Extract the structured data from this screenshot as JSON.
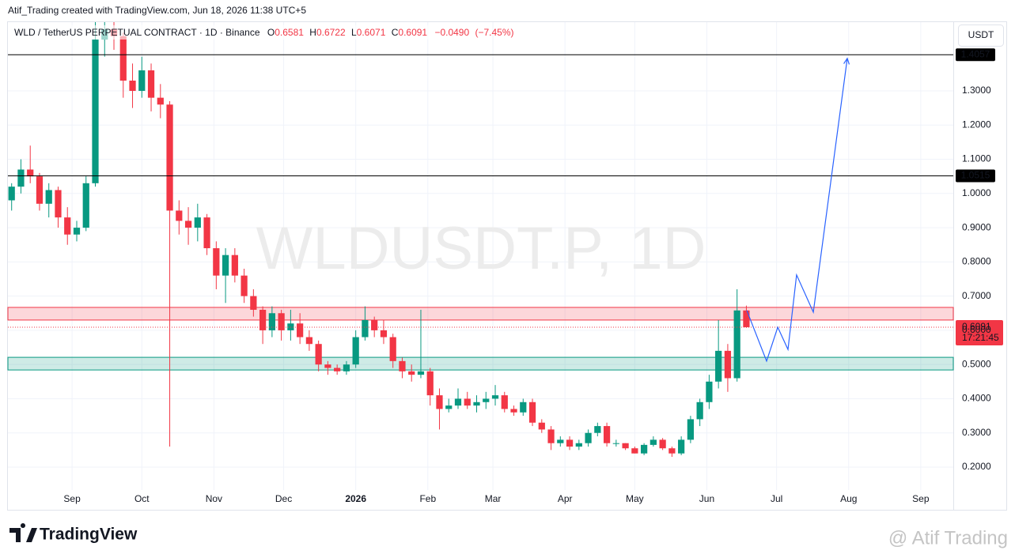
{
  "header": "Atif_Trading created with TradingView.com, Jun 18, 2026 11:38 UTC+5",
  "chart_data": {
    "type": "candlestick",
    "title": "WLD / TetherUS PERPETUAL CONTRACT · 1D · Binance",
    "ohlc_legend": {
      "o_label": "O",
      "open": 0.6581,
      "h_label": "H",
      "high": 0.6722,
      "l_label": "L",
      "low": 0.6071,
      "c_label": "C",
      "close": 0.6091,
      "change": {
        "value": -0.049,
        "label": "−0.0490"
      },
      "change_pct": {
        "value": -7.45,
        "label": "(−7.45%)"
      }
    },
    "watermark": "WLDUSDT.P, 1D",
    "currency": "USDT",
    "up_color": "#089981",
    "down_color": "#f23645",
    "x": [
      5,
      9,
      13,
      17,
      21,
      25,
      29,
      33,
      37,
      41,
      45,
      49,
      53,
      57,
      61,
      65,
      69,
      73,
      77,
      81,
      85,
      89,
      93,
      97,
      101,
      105,
      109,
      113,
      117,
      121,
      125,
      129,
      133,
      137,
      141,
      145,
      149,
      153,
      157,
      161,
      165,
      169,
      173,
      177,
      181,
      185,
      189,
      193,
      197,
      201,
      205,
      209,
      213,
      217,
      221,
      225,
      229,
      233,
      237,
      241,
      245,
      249,
      253,
      257,
      261,
      265,
      269,
      273,
      277,
      281,
      285,
      289,
      293,
      297,
      301,
      305,
      309,
      313,
      317,
      321
    ],
    "open": [
      0.98,
      1.02,
      1.07,
      1.05,
      0.97,
      1.01,
      0.93,
      0.88,
      0.9,
      1.03,
      1.45,
      1.48,
      1.46,
      1.33,
      1.3,
      1.36,
      1.28,
      1.26,
      0.95,
      0.92,
      0.9,
      0.93,
      0.84,
      0.76,
      0.82,
      0.76,
      0.7,
      0.66,
      0.6,
      0.65,
      0.6,
      0.62,
      0.58,
      0.56,
      0.5,
      0.49,
      0.48,
      0.5,
      0.58,
      0.63,
      0.6,
      0.58,
      0.51,
      0.48,
      0.47,
      0.48,
      0.41,
      0.37,
      0.38,
      0.4,
      0.38,
      0.39,
      0.4,
      0.41,
      0.37,
      0.36,
      0.39,
      0.33,
      0.31,
      0.27,
      0.28,
      0.26,
      0.27,
      0.3,
      0.32,
      0.27,
      0.27,
      0.255,
      0.24,
      0.265,
      0.28,
      0.255,
      0.24,
      0.28,
      0.34,
      0.39,
      0.45,
      0.54,
      0.46,
      0.6581
    ],
    "high": [
      1.03,
      1.1,
      1.14,
      1.06,
      1.03,
      1.02,
      0.96,
      0.92,
      1.05,
      1.55,
      1.55,
      1.52,
      1.47,
      1.38,
      1.4,
      1.38,
      1.32,
      1.27,
      0.98,
      0.96,
      0.97,
      0.94,
      0.86,
      0.84,
      0.84,
      0.78,
      0.72,
      0.67,
      0.67,
      0.66,
      0.66,
      0.65,
      0.6,
      0.57,
      0.51,
      0.5,
      0.51,
      0.6,
      0.67,
      0.64,
      0.63,
      0.59,
      0.52,
      0.5,
      0.66,
      0.49,
      0.43,
      0.4,
      0.43,
      0.42,
      0.41,
      0.42,
      0.44,
      0.42,
      0.38,
      0.4,
      0.4,
      0.34,
      0.32,
      0.29,
      0.29,
      0.28,
      0.31,
      0.33,
      0.33,
      0.28,
      0.27,
      0.26,
      0.27,
      0.29,
      0.285,
      0.26,
      0.29,
      0.35,
      0.4,
      0.47,
      0.63,
      0.56,
      0.72,
      0.6722
    ],
    "low": [
      0.95,
      1.0,
      1.03,
      0.95,
      0.93,
      0.9,
      0.85,
      0.86,
      0.89,
      1.02,
      1.4,
      1.42,
      1.28,
      1.25,
      1.28,
      1.24,
      1.22,
      0.26,
      0.88,
      0.85,
      0.86,
      0.82,
      0.72,
      0.68,
      0.74,
      0.68,
      0.64,
      0.56,
      0.58,
      0.57,
      0.57,
      0.56,
      0.54,
      0.48,
      0.47,
      0.47,
      0.47,
      0.49,
      0.57,
      0.58,
      0.56,
      0.49,
      0.46,
      0.45,
      0.46,
      0.38,
      0.31,
      0.36,
      0.37,
      0.37,
      0.36,
      0.37,
      0.38,
      0.36,
      0.35,
      0.35,
      0.32,
      0.3,
      0.25,
      0.26,
      0.25,
      0.25,
      0.26,
      0.29,
      0.26,
      0.26,
      0.25,
      0.24,
      0.235,
      0.26,
      0.25,
      0.23,
      0.235,
      0.27,
      0.32,
      0.37,
      0.43,
      0.42,
      0.45,
      0.6071
    ],
    "close": [
      1.02,
      1.07,
      1.05,
      0.97,
      1.01,
      0.93,
      0.88,
      0.9,
      1.03,
      1.45,
      1.48,
      1.46,
      1.33,
      1.3,
      1.36,
      1.28,
      1.26,
      0.95,
      0.92,
      0.9,
      0.93,
      0.84,
      0.76,
      0.82,
      0.76,
      0.7,
      0.66,
      0.6,
      0.65,
      0.6,
      0.62,
      0.58,
      0.56,
      0.5,
      0.49,
      0.48,
      0.5,
      0.58,
      0.63,
      0.6,
      0.58,
      0.51,
      0.48,
      0.47,
      0.48,
      0.41,
      0.37,
      0.38,
      0.4,
      0.38,
      0.39,
      0.4,
      0.41,
      0.37,
      0.36,
      0.39,
      0.33,
      0.31,
      0.27,
      0.28,
      0.26,
      0.27,
      0.3,
      0.32,
      0.27,
      0.27,
      0.255,
      0.24,
      0.265,
      0.28,
      0.255,
      0.24,
      0.28,
      0.34,
      0.39,
      0.45,
      0.54,
      0.46,
      0.6581,
      0.6091
    ],
    "xlim": [
      3.4,
      410
    ],
    "xticks": [
      {
        "value": 31,
        "label": "Sep"
      },
      {
        "value": 61,
        "label": "Oct"
      },
      {
        "value": 92,
        "label": "Nov"
      },
      {
        "value": 122,
        "label": "Dec"
      },
      {
        "value": 153,
        "label": "2026"
      },
      {
        "value": 184,
        "label": "Feb"
      },
      {
        "value": 212,
        "label": "Mar"
      },
      {
        "value": 243,
        "label": "Apr"
      },
      {
        "value": 273,
        "label": "May"
      },
      {
        "value": 304,
        "label": "Jun"
      },
      {
        "value": 334,
        "label": "Jul"
      },
      {
        "value": 365,
        "label": "Aug"
      },
      {
        "value": 396,
        "label": "Sep"
      }
    ],
    "ylim": [
      0.133,
      1.501
    ],
    "yticks": [
      {
        "value": 0.2,
        "label": "0.2000"
      },
      {
        "value": 0.3,
        "label": "0.3000"
      },
      {
        "value": 0.4,
        "label": "0.4000"
      },
      {
        "value": 0.5,
        "label": "0.5000"
      },
      {
        "value": 0.6,
        "label": "0.6000"
      },
      {
        "value": 0.7,
        "label": "0.7000"
      },
      {
        "value": 0.8,
        "label": "0.8000"
      },
      {
        "value": 0.9,
        "label": "0.9000"
      },
      {
        "value": 1.0,
        "label": "1.0000"
      },
      {
        "value": 1.1,
        "label": "1.1000"
      },
      {
        "value": 1.2,
        "label": "1.2000"
      },
      {
        "value": 1.3,
        "label": "1.3000"
      }
    ],
    "grid": true,
    "levels": [
      1.4057,
      1.0515
    ],
    "zones": [
      {
        "range": [
          0.63,
          0.667
        ],
        "color": "#f23645"
      },
      {
        "range": [
          0.484,
          0.521
        ],
        "color": "#089981"
      }
    ],
    "last_price": 0.6091,
    "countdown": "17:21:45",
    "projection": {
      "x": [
        321.2,
        329.7,
        334.5,
        338.9,
        342.6,
        349.8,
        364.4
      ],
      "y": [
        0.658,
        0.51,
        0.609,
        0.544,
        0.762,
        0.653,
        1.395
      ],
      "color": "#2962ff"
    }
  },
  "footer": {
    "logo": "TradingView",
    "credit": "@ Atif Trading"
  }
}
